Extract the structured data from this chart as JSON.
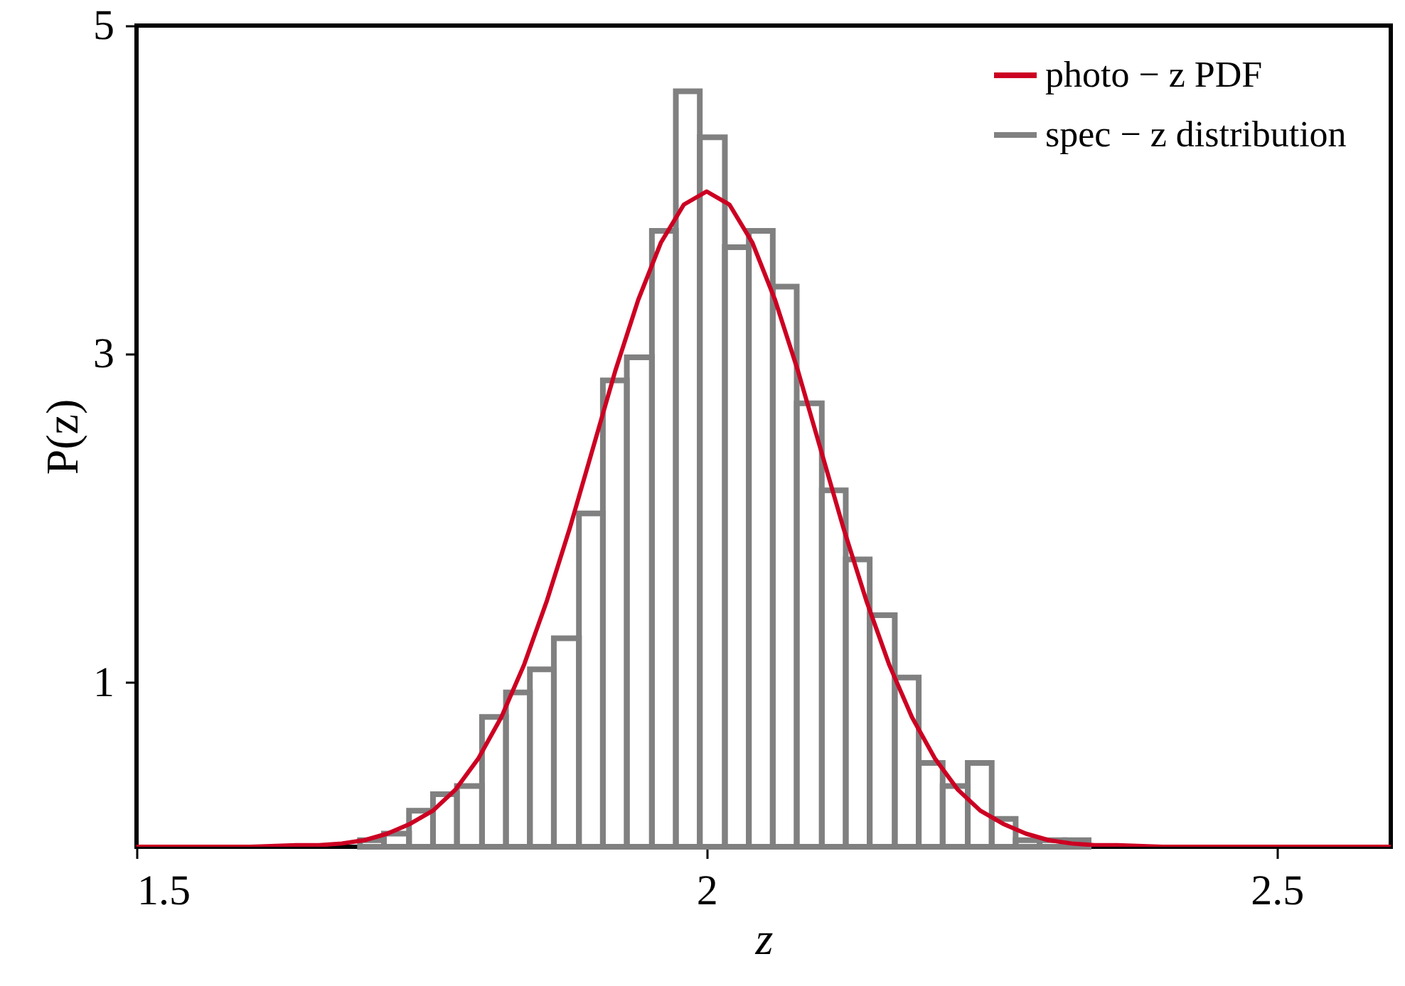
{
  "chart_data": {
    "type": "histogram",
    "xlabel": "z",
    "ylabel": "P(z)",
    "xlim": [
      1.5,
      2.6
    ],
    "xticks": [
      1.5,
      2,
      2.5
    ],
    "ylim": [
      0,
      5
    ],
    "yticks": [
      1,
      3,
      5
    ],
    "legend": "top right",
    "bins": [
      1.696,
      1.717,
      1.739,
      1.76,
      1.781,
      1.803,
      1.824,
      1.845,
      1.866,
      1.888,
      1.909,
      1.93,
      1.952,
      1.973,
      1.994,
      2.016,
      2.037,
      2.058,
      2.079,
      2.101,
      2.122,
      2.143,
      2.165,
      2.186,
      2.207,
      2.229,
      2.25,
      2.271,
      2.292,
      2.314,
      2.335
    ],
    "series": [
      {
        "name": "photo − z   PDF",
        "color": "#cc0022",
        "type": "line",
        "x": [
          1.5,
          1.6,
          1.64,
          1.66,
          1.68,
          1.7,
          1.72,
          1.74,
          1.76,
          1.78,
          1.8,
          1.82,
          1.84,
          1.86,
          1.88,
          1.9,
          1.92,
          1.94,
          1.96,
          1.98,
          2.0,
          2.02,
          2.04,
          2.06,
          2.08,
          2.1,
          2.12,
          2.14,
          2.16,
          2.18,
          2.2,
          2.22,
          2.24,
          2.26,
          2.28,
          2.3,
          2.32,
          2.34,
          2.36,
          2.4,
          2.5,
          2.6
        ],
        "values": [
          0,
          0,
          0.01,
          0.01,
          0.02,
          0.04,
          0.08,
          0.14,
          0.22,
          0.35,
          0.54,
          0.79,
          1.11,
          1.5,
          1.94,
          2.42,
          2.9,
          3.33,
          3.68,
          3.91,
          3.99,
          3.91,
          3.68,
          3.33,
          2.9,
          2.42,
          1.94,
          1.5,
          1.11,
          0.79,
          0.54,
          0.35,
          0.22,
          0.14,
          0.08,
          0.04,
          0.02,
          0.01,
          0.01,
          0,
          0,
          0
        ]
      },
      {
        "name": "spec − z   distribution",
        "color": "#808080",
        "values": [
          0.04,
          0.08,
          0.22,
          0.32,
          0.37,
          0.79,
          0.94,
          1.08,
          1.27,
          2.03,
          2.84,
          2.98,
          3.75,
          4.6,
          4.32,
          3.65,
          3.75,
          3.41,
          2.7,
          2.17,
          1.75,
          1.41,
          1.03,
          0.51,
          0.37,
          0.51,
          0.17,
          0.04,
          0.04,
          0.04
        ]
      }
    ]
  }
}
